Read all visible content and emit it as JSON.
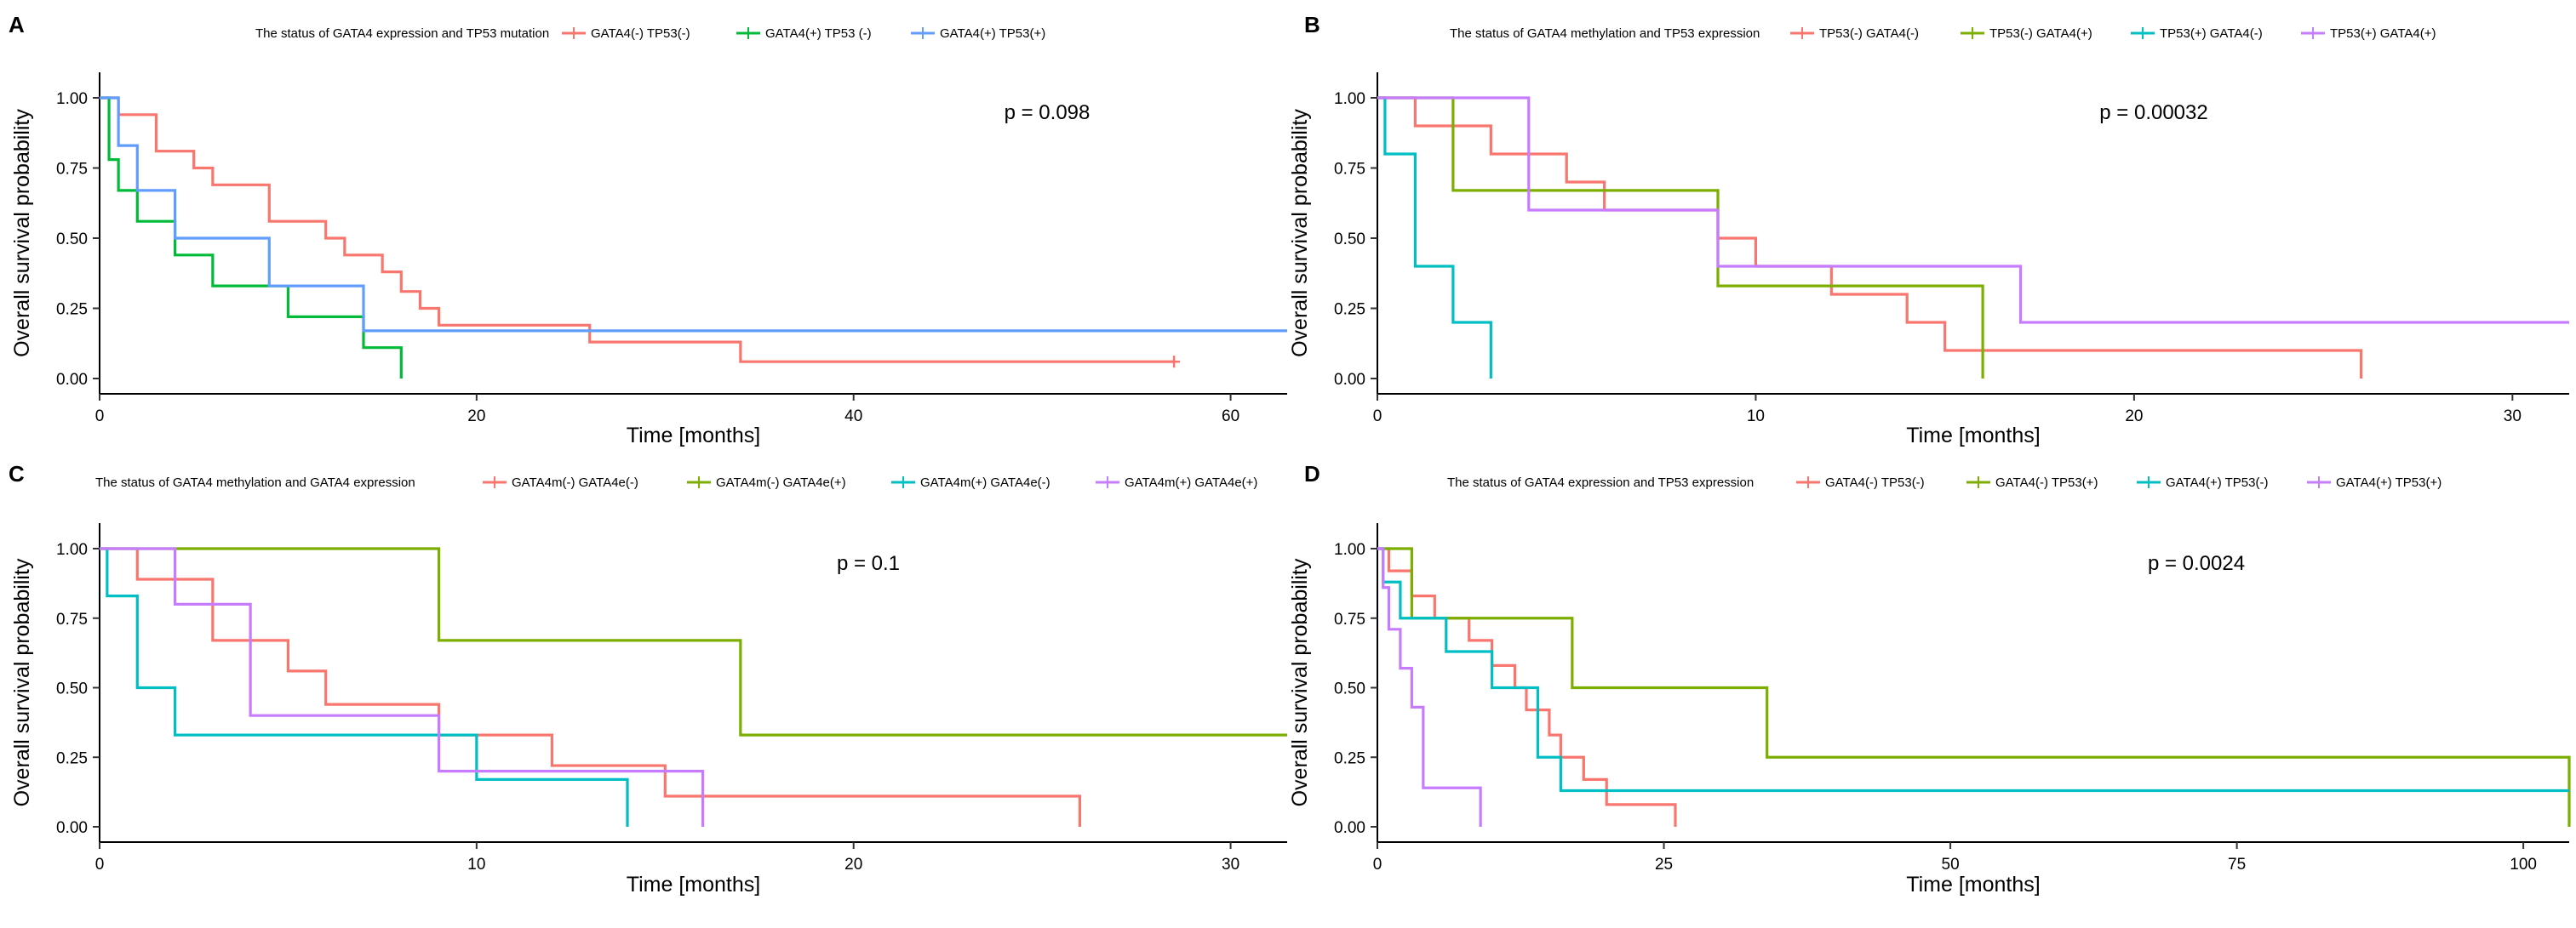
{
  "chart_data": [
    {
      "type": "line",
      "panel_label": "A",
      "legend_title": "The status of GATA4 expression and TP53 mutation",
      "xlabel": "Time [months]",
      "ylabel": "Overall survival probability",
      "xlim": [
        0,
        63
      ],
      "ylim": [
        0,
        1
      ],
      "x_ticks": [
        0,
        20,
        40,
        60
      ],
      "y_ticks": [
        0,
        0.25,
        0.5,
        0.75,
        1.0
      ],
      "y_tick_labels": [
        "0.00",
        "0.25",
        "0.50",
        "0.75",
        "1.00"
      ],
      "p_value": "p = 0.098",
      "series": [
        {
          "name": "GATA4(-) TP53(-)",
          "color": "#F8766D",
          "x": [
            0,
            1,
            3,
            5,
            6,
            9,
            12,
            13,
            15,
            16,
            17,
            18,
            19,
            20,
            26,
            34,
            57
          ],
          "y": [
            1.0,
            0.94,
            0.81,
            0.75,
            0.69,
            0.56,
            0.5,
            0.44,
            0.38,
            0.31,
            0.25,
            0.19,
            0.19,
            0.19,
            0.13,
            0.06,
            0.06
          ],
          "censor_x": [
            57
          ],
          "censor_y": [
            0.06
          ]
        },
        {
          "name": "GATA4(+) TP53 (-)",
          "color": "#00BA38",
          "x": [
            0,
            0.5,
            1,
            2,
            4,
            6,
            10,
            14,
            16
          ],
          "y": [
            1.0,
            0.78,
            0.67,
            0.56,
            0.44,
            0.33,
            0.22,
            0.11,
            0.0
          ]
        },
        {
          "name": "GATA4(+) TP53(+)",
          "color": "#619CFF",
          "x": [
            0,
            1,
            2,
            4,
            9,
            14,
            63
          ],
          "y": [
            1.0,
            0.83,
            0.67,
            0.5,
            0.33,
            0.17,
            0.17
          ]
        }
      ]
    },
    {
      "type": "line",
      "panel_label": "B",
      "legend_title": "The status of GATA4 methylation and TP53 expression",
      "xlabel": "Time [months]",
      "ylabel": "Overall survival probability",
      "xlim": [
        0,
        31.5
      ],
      "ylim": [
        0,
        1
      ],
      "x_ticks": [
        0,
        10,
        20,
        30
      ],
      "y_ticks": [
        0,
        0.25,
        0.5,
        0.75,
        1.0
      ],
      "y_tick_labels": [
        "0.00",
        "0.25",
        "0.50",
        "0.75",
        "1.00"
      ],
      "p_value": "p = 0.00032",
      "series": [
        {
          "name": "TP53(-) GATA4(-)",
          "color": "#F8766D",
          "x": [
            0,
            1,
            3,
            5,
            6,
            9,
            10,
            12,
            14,
            15,
            26
          ],
          "y": [
            1.0,
            0.9,
            0.8,
            0.7,
            0.6,
            0.5,
            0.4,
            0.3,
            0.2,
            0.1,
            0.0
          ]
        },
        {
          "name": "TP53(-) GATA4(+)",
          "color": "#7CAE00",
          "x": [
            0,
            2,
            9,
            16
          ],
          "y": [
            1.0,
            0.67,
            0.33,
            0.0
          ]
        },
        {
          "name": "TP53(+) GATA4(-)",
          "color": "#00BFC4",
          "x": [
            0,
            0.2,
            1,
            2,
            3
          ],
          "y": [
            1.0,
            0.8,
            0.4,
            0.2,
            0.0
          ]
        },
        {
          "name": "TP53(+) GATA4(+)",
          "color": "#C77CFF",
          "x": [
            0,
            4,
            9,
            17,
            31.5
          ],
          "y": [
            1.0,
            0.6,
            0.4,
            0.2,
            0.2
          ]
        }
      ]
    },
    {
      "type": "line",
      "panel_label": "C",
      "legend_title": "The status of GATA4 methylation and GATA4 expression",
      "xlabel": "Time [months]",
      "ylabel": "Overall survival probability",
      "xlim": [
        0,
        31.5
      ],
      "ylim": [
        0,
        1
      ],
      "x_ticks": [
        0,
        10,
        20,
        30
      ],
      "y_ticks": [
        0,
        0.25,
        0.5,
        0.75,
        1.0
      ],
      "y_tick_labels": [
        "0.00",
        "0.25",
        "0.50",
        "0.75",
        "1.00"
      ],
      "p_value": "p = 0.1",
      "series": [
        {
          "name": "GATA4m(-) GATA4e(-)",
          "color": "#F8766D",
          "x": [
            0,
            1,
            3,
            5,
            6,
            9,
            12,
            15,
            26
          ],
          "y": [
            1.0,
            0.89,
            0.67,
            0.56,
            0.44,
            0.33,
            0.22,
            0.11,
            0.0
          ]
        },
        {
          "name": "GATA4m(-) GATA4e(+)",
          "color": "#7CAE00",
          "x": [
            0,
            9,
            17,
            31.5
          ],
          "y": [
            1.0,
            0.67,
            0.33,
            0.33
          ]
        },
        {
          "name": "GATA4m(+) GATA4e(-)",
          "color": "#00BFC4",
          "x": [
            0,
            0.2,
            1,
            2,
            10,
            14
          ],
          "y": [
            1.0,
            0.83,
            0.5,
            0.33,
            0.17,
            0.0
          ]
        },
        {
          "name": "GATA4m(+) GATA4e(+)",
          "color": "#C77CFF",
          "x": [
            0,
            2,
            4,
            9,
            16
          ],
          "y": [
            1.0,
            0.8,
            0.4,
            0.2,
            0.0
          ]
        }
      ]
    },
    {
      "type": "line",
      "panel_label": "D",
      "legend_title": "The status of GATA4 expression and TP53 expression",
      "xlabel": "Time [months]",
      "ylabel": "Overall survival probability",
      "xlim": [
        0,
        104
      ],
      "ylim": [
        0,
        1
      ],
      "x_ticks": [
        0,
        25,
        50,
        75,
        100
      ],
      "y_ticks": [
        0,
        0.25,
        0.5,
        0.75,
        1.0
      ],
      "y_tick_labels": [
        "0.00",
        "0.25",
        "0.50",
        "0.75",
        "1.00"
      ],
      "p_value": "p = 0.0024",
      "series": [
        {
          "name": "GATA4(-) TP53(-)",
          "color": "#F8766D",
          "x": [
            0,
            1,
            3,
            5,
            8,
            10,
            12,
            13,
            15,
            16,
            18,
            20,
            26
          ],
          "y": [
            1.0,
            0.92,
            0.83,
            0.75,
            0.67,
            0.58,
            0.5,
            0.42,
            0.33,
            0.25,
            0.17,
            0.08,
            0.0
          ]
        },
        {
          "name": "GATA4(-) TP53(+)",
          "color": "#7CAE00",
          "x": [
            0,
            3,
            17,
            34,
            104
          ],
          "y": [
            1.0,
            0.75,
            0.5,
            0.25,
            0.0
          ]
        },
        {
          "name": "GATA4(+) TP53(-)",
          "color": "#00BFC4",
          "x": [
            0,
            0.5,
            2,
            6,
            10,
            14,
            16,
            104
          ],
          "y": [
            1.0,
            0.88,
            0.75,
            0.63,
            0.5,
            0.25,
            0.13,
            0.13
          ]
        },
        {
          "name": "GATA4(+) TP53(+)",
          "color": "#C77CFF",
          "x": [
            0,
            0.5,
            1,
            2,
            3,
            4,
            9
          ],
          "y": [
            1.0,
            0.86,
            0.71,
            0.57,
            0.43,
            0.14,
            0.0
          ]
        }
      ]
    }
  ]
}
